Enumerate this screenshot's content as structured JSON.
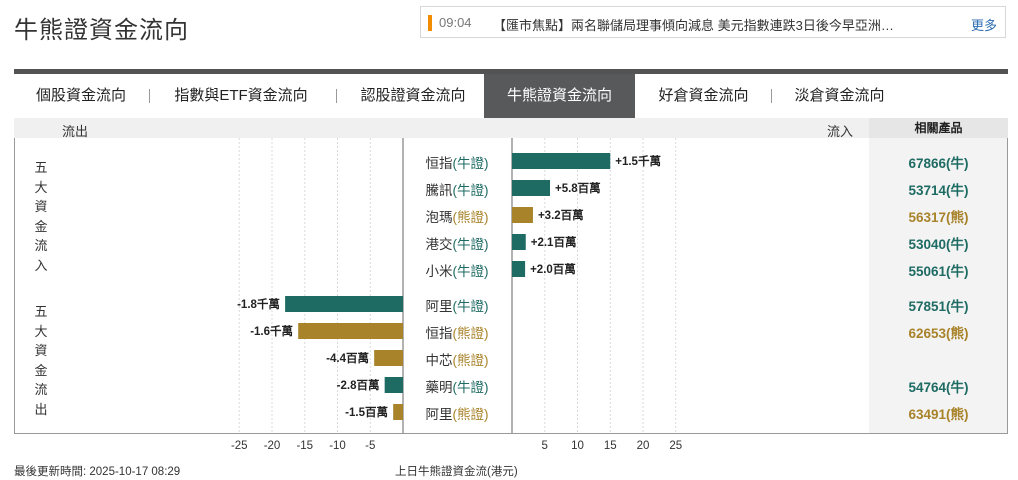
{
  "page": {
    "title": "牛熊證資金流向"
  },
  "news": {
    "time": "09:04",
    "text": "【匯市焦點】兩名聯儲局理事傾向減息 美元指數連跌3日後今早亞洲…",
    "more": "更多"
  },
  "tabs": [
    {
      "label": "個股資金流向"
    },
    {
      "label": "指數與ETF資金流向"
    },
    {
      "label": "認股證資金流向"
    },
    {
      "label": "牛熊證資金流向"
    },
    {
      "label": "好倉資金流向"
    },
    {
      "label": "淡倉資金流向"
    }
  ],
  "active_tab": "牛熊證資金流向",
  "header": {
    "outflow": "流出",
    "inflow": "流入",
    "related": "相關產品"
  },
  "groups": {
    "inflow_label": "五大資金流入",
    "outflow_label": "五大資金流出"
  },
  "colors": {
    "bull": "#1e6b63",
    "bear": "#a8832a"
  },
  "chart_data": {
    "type": "bar",
    "orientation": "horizontal",
    "unit": "港元",
    "xlabel": "上日牛熊證資金流(港元)",
    "xlim": [
      -30,
      30
    ],
    "x_ticks": [
      -25,
      -20,
      -15,
      -10,
      -5,
      5,
      10,
      15,
      20,
      25
    ],
    "inflow": [
      {
        "name": "恒指",
        "type": "牛證",
        "kind": "bull",
        "value": 15000000,
        "label": "+1.5千萬",
        "related": "67866(牛)"
      },
      {
        "name": "騰訊",
        "type": "牛證",
        "kind": "bull",
        "value": 5800000,
        "label": "+5.8百萬",
        "related": "53714(牛)"
      },
      {
        "name": "泡瑪",
        "type": "熊證",
        "kind": "bear",
        "value": 3200000,
        "label": "+3.2百萬",
        "related": "56317(熊)"
      },
      {
        "name": "港交",
        "type": "牛證",
        "kind": "bull",
        "value": 2100000,
        "label": "+2.1百萬",
        "related": "53040(牛)"
      },
      {
        "name": "小米",
        "type": "牛證",
        "kind": "bull",
        "value": 2000000,
        "label": "+2.0百萬",
        "related": "55061(牛)"
      }
    ],
    "outflow": [
      {
        "name": "阿里",
        "type": "牛證",
        "kind": "bull",
        "value": -18000000,
        "label": "-1.8千萬",
        "related": "57851(牛)"
      },
      {
        "name": "恒指",
        "type": "熊證",
        "kind": "bear",
        "value": -16000000,
        "label": "-1.6千萬",
        "related": "62653(熊)"
      },
      {
        "name": "中芯",
        "type": "熊證",
        "kind": "bear",
        "value": -4400000,
        "label": "-4.4百萬",
        "related": ""
      },
      {
        "name": "藥明",
        "type": "牛證",
        "kind": "bull",
        "value": -2800000,
        "label": "-2.8百萬",
        "related": "54764(牛)"
      },
      {
        "name": "阿里",
        "type": "熊證",
        "kind": "bear",
        "value": -1500000,
        "label": "-1.5百萬",
        "related": "63491(熊)"
      }
    ]
  },
  "footer": {
    "updated": "最後更新時間: 2025-10-17 08:29"
  }
}
